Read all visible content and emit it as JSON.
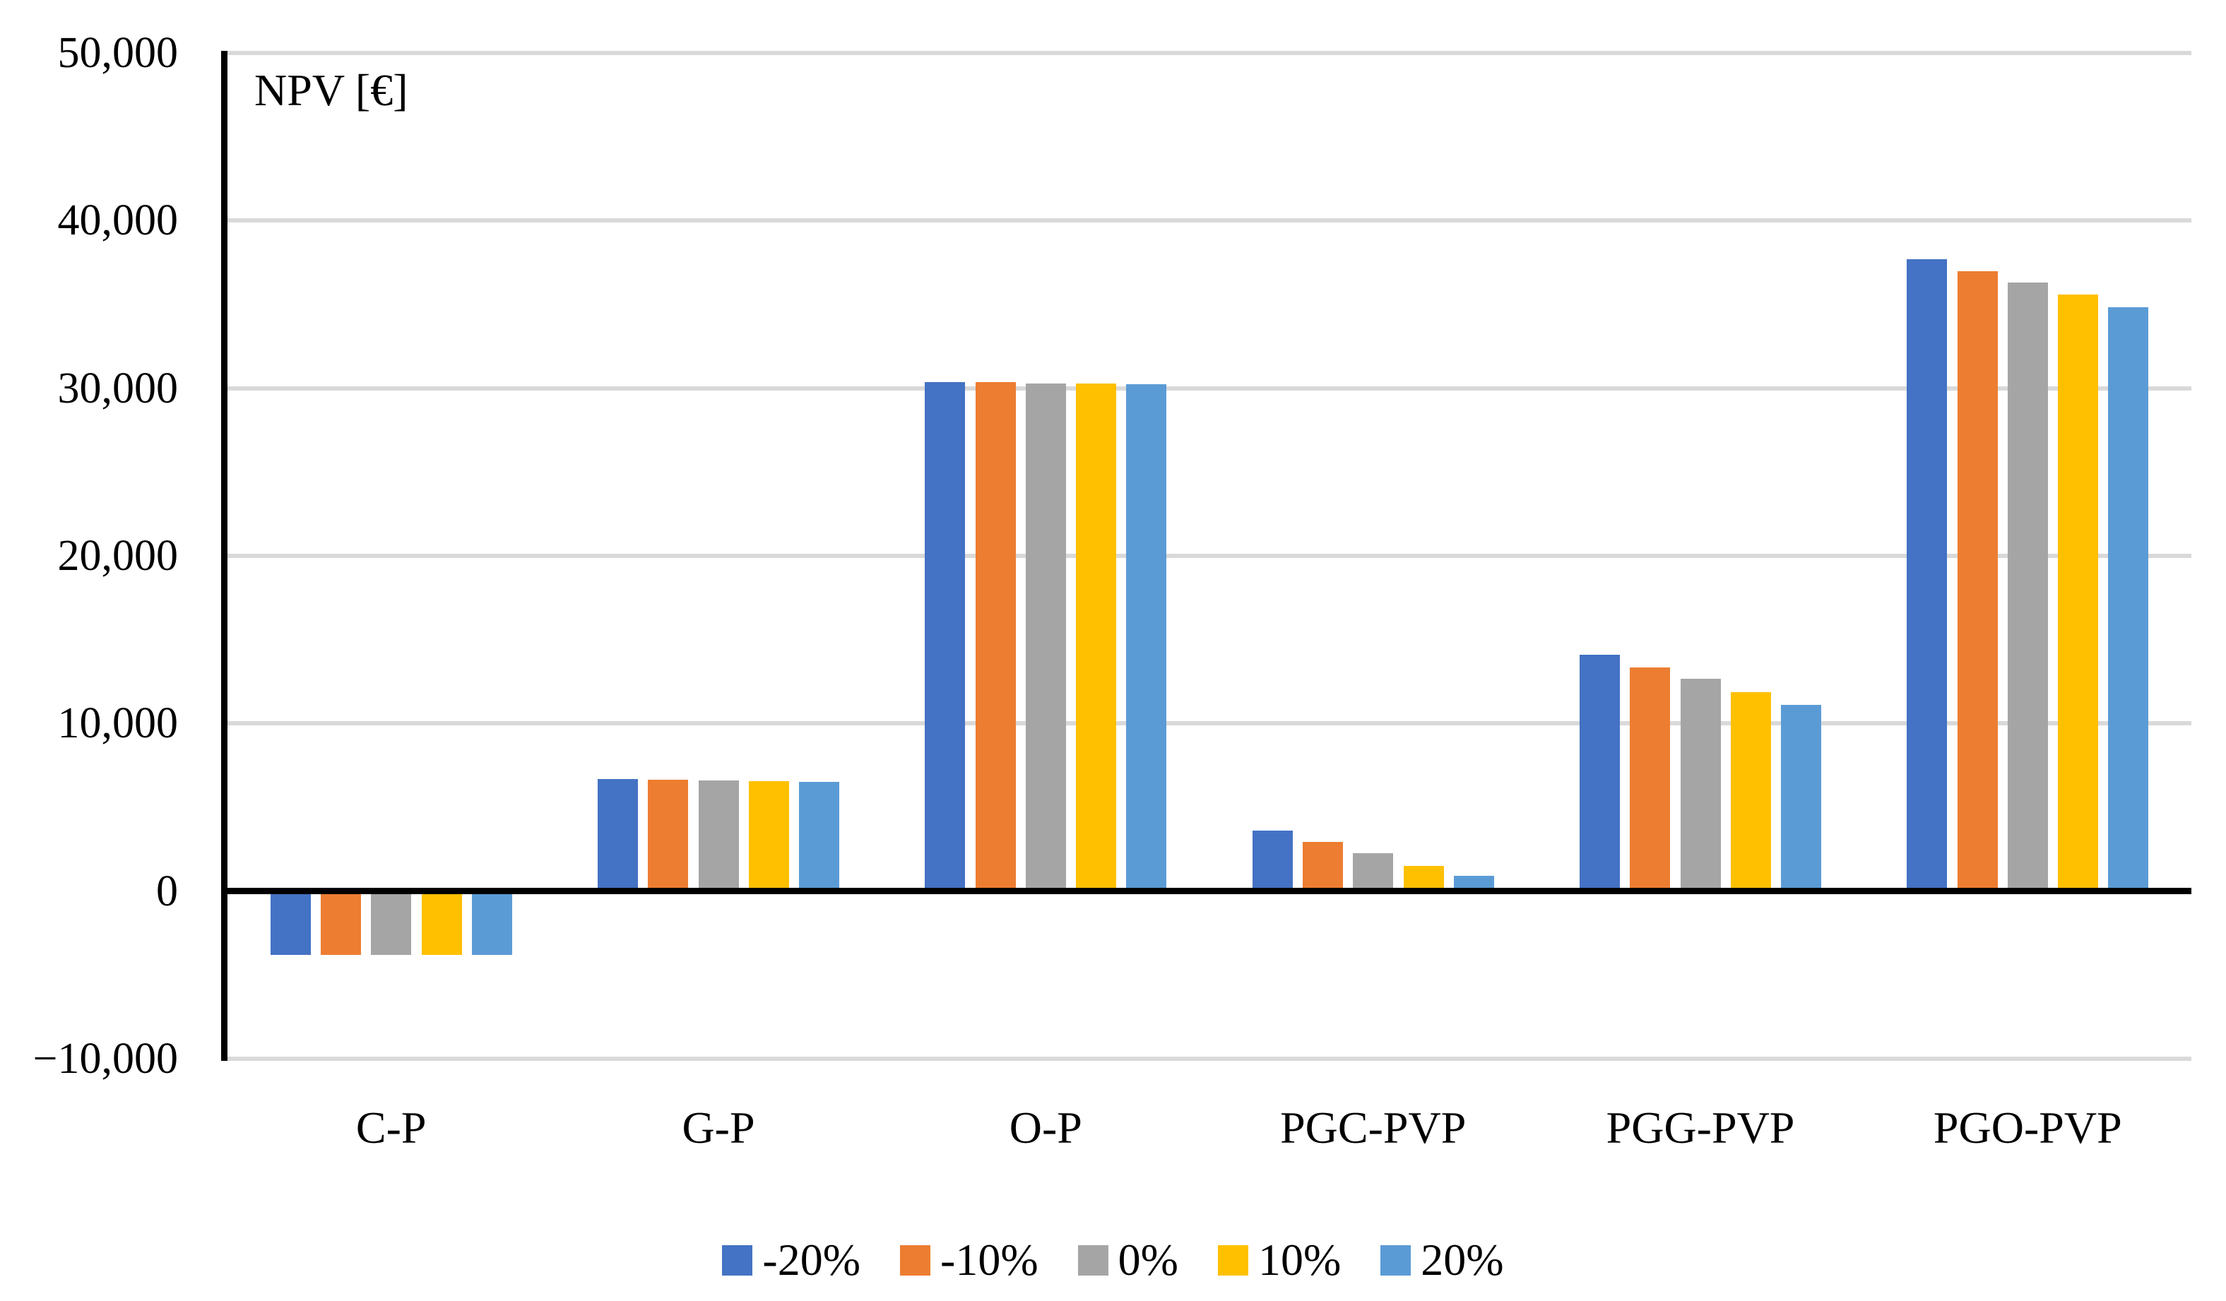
{
  "chart_data": {
    "type": "bar",
    "title": "",
    "ylabel": "NPV [€]",
    "xlabel": "",
    "categories": [
      "C-P",
      "G-P",
      "O-P",
      "PGC-PVP",
      "PGG-PVP",
      "PGO-PVP"
    ],
    "series": [
      {
        "name": "-20%",
        "color": "#4472C4",
        "values": [
          -3800,
          6700,
          30350,
          3600,
          14100,
          37700
        ]
      },
      {
        "name": "-10%",
        "color": "#ED7D31",
        "values": [
          -3800,
          6650,
          30350,
          2950,
          13350,
          37000
        ]
      },
      {
        "name": "0%",
        "color": "#A5A5A5",
        "values": [
          -3800,
          6600,
          30300,
          2250,
          12650,
          36300
        ]
      },
      {
        "name": "10%",
        "color": "#FFC000",
        "values": [
          -3800,
          6550,
          30300,
          1500,
          11850,
          35600
        ]
      },
      {
        "name": "20%",
        "color": "#5B9BD5",
        "values": [
          -3800,
          6500,
          30250,
          900,
          11100,
          34850
        ]
      }
    ],
    "ylim": [
      -10000,
      50000
    ],
    "ytick_interval": 10000,
    "y_tick_labels": [
      "50,000",
      "40,000",
      "30,000",
      "20,000",
      "10,000",
      "0",
      "−10,000"
    ],
    "grid": "horizontal-only",
    "gridline_color": "#D9D9D9",
    "axis_color": "#000000",
    "legend_position": "bottom-center"
  }
}
